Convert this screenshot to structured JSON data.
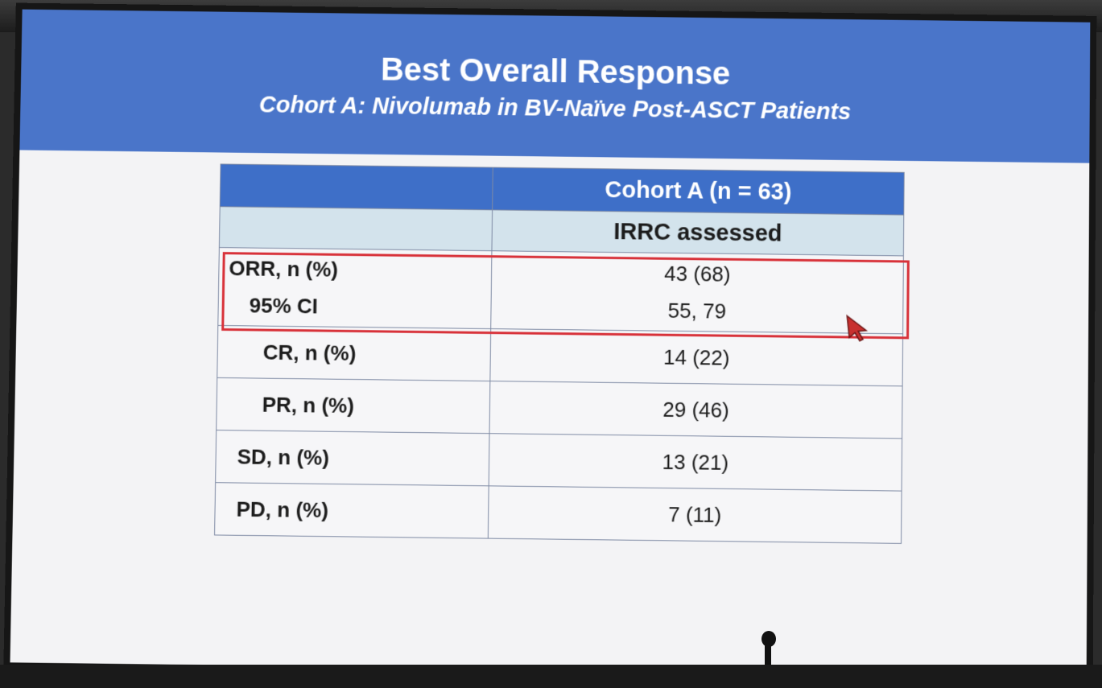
{
  "slide": {
    "title": "Best Overall Response",
    "subtitle": "Cohort A: Nivolumab in BV-Naïve Post-ASCT Patients"
  },
  "table": {
    "header_main": "Cohort A (n = 63)",
    "header_sub": "IRRC assessed",
    "orr": {
      "label": "ORR, n (%)",
      "ci_label": "95% CI",
      "value": "43 (68)",
      "ci_value": "55, 79"
    },
    "rows": [
      {
        "label": "CR, n (%)",
        "value": "14 (22)"
      },
      {
        "label": "PR, n (%)",
        "value": "29 (46)"
      },
      {
        "label": "SD, n (%)",
        "value": "13 (21)"
      },
      {
        "label": "PD, n (%)",
        "value": "7 (11)"
      }
    ]
  },
  "colors": {
    "banner": "#4a75c9",
    "table_header": "#3e6fc8",
    "table_subheader": "#d3e3ec",
    "highlight": "#d8323a"
  }
}
